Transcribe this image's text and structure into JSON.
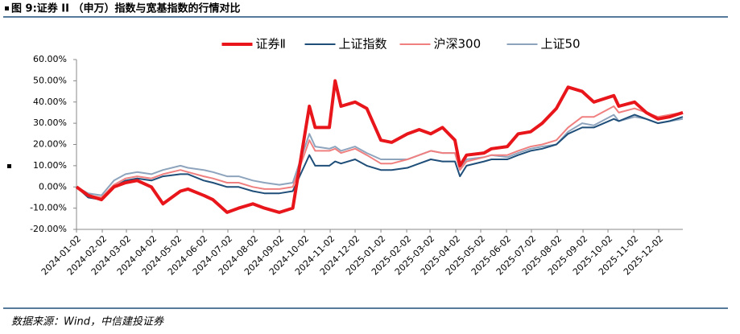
{
  "chart_data": {
    "type": "line",
    "title": "图 9:证券 II （申万）指数与宽基指数的行情对比",
    "source": "数据来源：Wind，中信建投证券",
    "x": [
      "2024-01-02",
      "2024-01-16",
      "2024-02-01",
      "2024-02-16",
      "2024-03-01",
      "2024-03-15",
      "2024-04-01",
      "2024-04-15",
      "2024-05-06",
      "2024-05-15",
      "2024-06-03",
      "2024-06-14",
      "2024-07-01",
      "2024-07-15",
      "2024-08-01",
      "2024-08-15",
      "2024-09-02",
      "2024-09-18",
      "2024-10-08",
      "2024-10-15",
      "2024-11-01",
      "2024-11-08",
      "2024-11-15",
      "2024-12-02",
      "2024-12-16",
      "2025-01-02",
      "2025-01-15",
      "2025-02-03",
      "2025-02-17",
      "2025-03-03",
      "2025-03-17",
      "2025-04-01",
      "2025-04-07",
      "2025-04-15",
      "2025-05-06",
      "2025-05-15",
      "2025-06-03",
      "2025-06-16",
      "2025-07-01",
      "2025-07-15",
      "2025-08-01",
      "2025-08-15",
      "2025-09-01",
      "2025-09-15",
      "2025-10-09",
      "2025-10-15",
      "2025-11-03",
      "2025-11-17",
      "2025-12-01",
      "2025-12-15",
      "2025-12-31"
    ],
    "series": [
      {
        "name": "证券Ⅱ",
        "color": "#e8161b",
        "width": 4,
        "values": [
          0,
          -4,
          -6,
          0,
          2,
          3,
          0,
          -8,
          -2,
          -1,
          -4,
          -6,
          -12,
          -10,
          -8,
          -10,
          -12,
          -10,
          38,
          28,
          28,
          50,
          38,
          40,
          37,
          22,
          21,
          25,
          27,
          25,
          28,
          22,
          10,
          15,
          16,
          18,
          19,
          25,
          26,
          30,
          37,
          47,
          45,
          40,
          43,
          38,
          40,
          35,
          32,
          33,
          35
        ]
      },
      {
        "name": "上证指数",
        "color": "#1f4e79",
        "width": 2,
        "values": [
          0,
          -5,
          -6,
          0,
          3,
          4,
          3,
          5,
          6,
          6,
          3,
          2,
          0,
          0,
          -2,
          -3,
          -3,
          -2,
          15,
          10,
          10,
          12,
          11,
          13,
          10,
          8,
          8,
          9,
          11,
          13,
          12,
          12,
          5,
          10,
          12,
          13,
          13,
          15,
          17,
          18,
          20,
          25,
          28,
          28,
          32,
          31,
          34,
          32,
          30,
          31,
          33
        ]
      },
      {
        "name": "沪深300",
        "color": "#f08080",
        "width": 2,
        "values": [
          0,
          -4,
          -5,
          1,
          4,
          5,
          4,
          6,
          8,
          7,
          5,
          4,
          2,
          2,
          0,
          -1,
          -1,
          0,
          22,
          17,
          17,
          18,
          16,
          18,
          15,
          11,
          11,
          13,
          15,
          17,
          16,
          16,
          8,
          12,
          14,
          15,
          15,
          17,
          19,
          20,
          22,
          28,
          33,
          33,
          38,
          35,
          37,
          35,
          33,
          34,
          35
        ]
      },
      {
        "name": "上证50",
        "color": "#8ea4bd",
        "width": 2,
        "values": [
          0,
          -3,
          -4,
          3,
          6,
          7,
          6,
          8,
          10,
          9,
          8,
          7,
          5,
          5,
          3,
          2,
          1,
          2,
          25,
          19,
          18,
          19,
          17,
          19,
          16,
          13,
          13,
          13,
          15,
          17,
          16,
          16,
          8,
          13,
          14,
          15,
          14,
          16,
          18,
          19,
          20,
          26,
          30,
          29,
          34,
          31,
          33,
          32,
          30,
          31,
          32
        ]
      }
    ],
    "xlim": [
      "2024-01-02",
      "2025-12-31"
    ],
    "xticks": [
      "2024-01-02",
      "2024-02-02",
      "2024-03-02",
      "2024-04-02",
      "2024-05-02",
      "2024-06-02",
      "2024-07-02",
      "2024-08-02",
      "2024-09-02",
      "2024-10-02",
      "2024-11-02",
      "2024-12-02",
      "2025-01-02",
      "2025-02-02",
      "2025-03-02",
      "2025-04-02",
      "2025-05-02",
      "2025-06-02",
      "2025-07-02",
      "2025-08-02",
      "2025-09-02",
      "2025-10-02",
      "2025-11-02",
      "2025-12-02"
    ],
    "ylim": [
      -20,
      60
    ],
    "yticks": [
      {
        "value": -20,
        "label": "-20.00%"
      },
      {
        "value": -10,
        "label": "-10.00%"
      },
      {
        "value": 0,
        "label": "0.00%"
      },
      {
        "value": 10,
        "label": "10.00%"
      },
      {
        "value": 20,
        "label": "20.00%"
      },
      {
        "value": 30,
        "label": "30.00%"
      },
      {
        "value": 40,
        "label": "40.00%"
      },
      {
        "value": 50,
        "label": "50.00%"
      },
      {
        "value": 60,
        "label": "60.00%"
      }
    ],
    "legend": "top"
  }
}
